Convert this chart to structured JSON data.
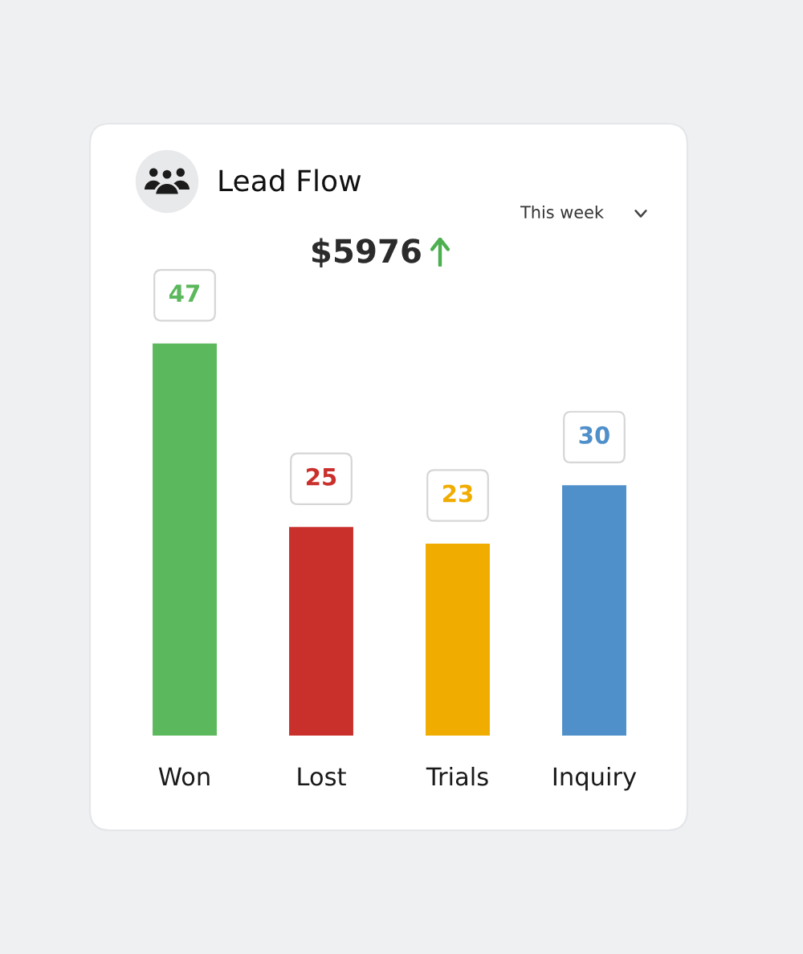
{
  "chart_data": {
    "type": "bar",
    "title": "Lead Flow",
    "subtitle": "$5976",
    "annotations": [
      "This week"
    ],
    "categories": [
      "Won",
      "Lost",
      "Trials",
      "Inquiry"
    ],
    "values": [
      47,
      25,
      23,
      30
    ],
    "colors": [
      "#5cb85c",
      "#c9302c",
      "#f0ad00",
      "#4f8fca"
    ],
    "data_labels": true
  }
}
